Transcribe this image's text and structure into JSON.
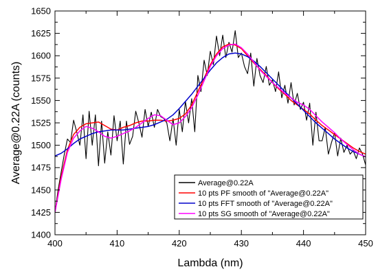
{
  "chart_data": {
    "type": "line",
    "xlabel": "Lambda (nm)",
    "ylabel": "Average@0.22A (counts)",
    "xlim": [
      400,
      450
    ],
    "ylim": [
      1400,
      1650
    ],
    "x_ticks": [
      400,
      410,
      420,
      430,
      440,
      450
    ],
    "y_ticks": [
      1400,
      1425,
      1450,
      1475,
      1500,
      1525,
      1550,
      1575,
      1600,
      1625,
      1650
    ],
    "grid": false,
    "legend_position": "bottom-right",
    "series": [
      {
        "name": "Average@0.22A",
        "color": "#000000",
        "x": [
          400,
          400.5,
          401,
          401.5,
          402,
          402.5,
          403,
          403.5,
          404,
          404.5,
          405,
          405.5,
          406,
          406.5,
          407,
          407.5,
          408,
          408.5,
          409,
          409.5,
          410,
          410.5,
          411,
          411.5,
          412,
          412.5,
          413,
          413.5,
          414,
          414.5,
          415,
          415.5,
          416,
          416.5,
          417,
          417.5,
          418,
          418.5,
          419,
          419.5,
          420,
          420.5,
          421,
          421.5,
          422,
          422.5,
          423,
          423.5,
          424,
          424.5,
          425,
          425.5,
          426,
          426.5,
          427,
          427.5,
          428,
          428.5,
          429,
          429.5,
          430,
          430.5,
          431,
          431.5,
          432,
          432.5,
          433,
          433.5,
          434,
          434.5,
          435,
          435.5,
          436,
          436.5,
          437,
          437.5,
          438,
          438.5,
          439,
          439.5,
          440,
          440.5,
          441,
          441.5,
          442,
          442.5,
          443,
          443.5,
          444,
          444.5,
          445,
          445.5,
          446,
          446.5,
          447,
          447.5,
          448,
          448.5,
          449,
          449.5,
          450
        ],
        "y": [
          1425,
          1450,
          1470,
          1490,
          1507,
          1503,
          1528,
          1515,
          1500,
          1534,
          1485,
          1538,
          1500,
          1534,
          1477,
          1527,
          1480,
          1515,
          1489,
          1533,
          1505,
          1527,
          1479,
          1527,
          1501,
          1510,
          1538,
          1525,
          1509,
          1540,
          1521,
          1537,
          1520,
          1540,
          1532,
          1530,
          1525,
          1505,
          1530,
          1500,
          1540,
          1515,
          1549,
          1525,
          1552,
          1515,
          1578,
          1560,
          1595,
          1578,
          1605,
          1590,
          1622,
          1600,
          1623,
          1598,
          1615,
          1604,
          1628,
          1598,
          1603,
          1588,
          1580,
          1603,
          1566,
          1597,
          1578,
          1570,
          1588,
          1567,
          1573,
          1560,
          1582,
          1553,
          1567,
          1547,
          1570,
          1545,
          1558,
          1540,
          1548,
          1528,
          1547,
          1500,
          1537,
          1505,
          1505,
          1520,
          1490,
          1503,
          1514,
          1488,
          1508,
          1492,
          1500,
          1490,
          1494,
          1485,
          1497,
          1490,
          1478
        ]
      },
      {
        "name": "10 pts PF smooth of \"Average@0.22A\"",
        "color": "#ff0000",
        "x": [
          400,
          401,
          402,
          403,
          404,
          405,
          406,
          407,
          408,
          409,
          410,
          411,
          412,
          413,
          414,
          415,
          416,
          417,
          418,
          419,
          420,
          421,
          422,
          423,
          424,
          425,
          426,
          427,
          428,
          429,
          430,
          431,
          432,
          433,
          434,
          435,
          436,
          437,
          438,
          439,
          440,
          441,
          442,
          443,
          444,
          445,
          446,
          447,
          448,
          449,
          450
        ],
        "y": [
          1425,
          1465,
          1495,
          1512,
          1520,
          1524,
          1525,
          1526,
          1522,
          1518,
          1517,
          1520,
          1522,
          1525,
          1527,
          1527,
          1528,
          1528,
          1527,
          1528,
          1530,
          1535,
          1545,
          1560,
          1575,
          1590,
          1602,
          1610,
          1613,
          1612,
          1608,
          1600,
          1592,
          1585,
          1578,
          1570,
          1563,
          1557,
          1550,
          1545,
          1540,
          1535,
          1528,
          1522,
          1517,
          1512,
          1507,
          1502,
          1497,
          1493,
          1490
        ]
      },
      {
        "name": "10 pts FFT smooth of \"Average@0.22A\"",
        "color": "#0000cc",
        "x": [
          400,
          401,
          402,
          403,
          404,
          405,
          406,
          407,
          408,
          409,
          410,
          411,
          412,
          413,
          414,
          415,
          416,
          417,
          418,
          419,
          420,
          421,
          422,
          423,
          424,
          425,
          426,
          427,
          428,
          429,
          430,
          431,
          432,
          433,
          434,
          435,
          436,
          437,
          438,
          439,
          440,
          441,
          442,
          443,
          444,
          445,
          446,
          447,
          448,
          449,
          450
        ],
        "y": [
          1488,
          1491,
          1496,
          1502,
          1507,
          1510,
          1513,
          1515,
          1516,
          1517,
          1517,
          1517,
          1518,
          1519,
          1520,
          1521,
          1523,
          1526,
          1529,
          1534,
          1541,
          1549,
          1557,
          1566,
          1575,
          1584,
          1592,
          1598,
          1602,
          1603,
          1602,
          1599,
          1594,
          1588,
          1581,
          1574,
          1567,
          1560,
          1553,
          1546,
          1539,
          1532,
          1525,
          1519,
          1513,
          1507,
          1502,
          1497,
          1493,
          1490,
          1487
        ]
      },
      {
        "name": "10 pts SG smooth of \"Average@0.22A\"",
        "color": "#ff00ff",
        "x": [
          400,
          401,
          402,
          403,
          404,
          405,
          406,
          407,
          408,
          409,
          410,
          411,
          412,
          413,
          414,
          415,
          416,
          417,
          418,
          419,
          420,
          421,
          422,
          423,
          424,
          425,
          426,
          427,
          428,
          429,
          430,
          431,
          432,
          433,
          434,
          435,
          436,
          437,
          438,
          439,
          440,
          441,
          442,
          443,
          444,
          445,
          446,
          447,
          448,
          449,
          450
        ],
        "y": [
          1425,
          1462,
          1492,
          1508,
          1516,
          1521,
          1519,
          1515,
          1510,
          1508,
          1510,
          1513,
          1516,
          1520,
          1525,
          1530,
          1534,
          1533,
          1528,
          1523,
          1525,
          1532,
          1542,
          1556,
          1572,
          1588,
          1600,
          1608,
          1612,
          1613,
          1609,
          1602,
          1593,
          1584,
          1577,
          1570,
          1564,
          1558,
          1553,
          1548,
          1545,
          1540,
          1533,
          1526,
          1520,
          1514,
          1507,
          1501,
          1495,
          1490,
          1487
        ]
      }
    ]
  }
}
